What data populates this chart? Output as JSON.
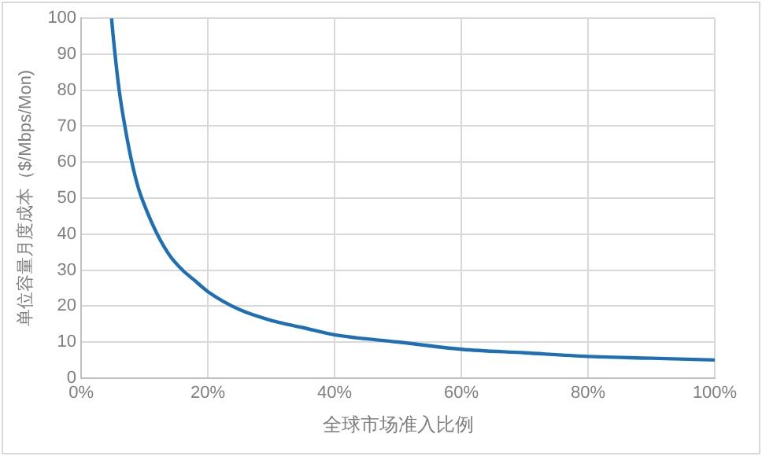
{
  "chart_data": {
    "type": "line",
    "xlabel": "全球市场准入比例",
    "ylabel": "单位容量月度成本（$/Mbps/Mon)",
    "x": [
      4.8,
      5,
      6,
      7,
      8,
      9,
      10,
      12,
      14,
      16,
      18,
      20,
      25,
      30,
      35,
      40,
      50,
      60,
      70,
      80,
      90,
      100
    ],
    "series": [
      {
        "color": "#1f6fb4",
        "values": [
          100,
          96,
          80,
          69,
          60,
          53,
          48,
          40,
          34,
          30,
          27,
          24,
          19,
          16,
          14,
          12,
          10,
          8,
          7,
          6,
          5.5,
          5
        ]
      }
    ],
    "xlim": [
      0,
      100
    ],
    "xticks": [
      {
        "value": 0,
        "label": "0%"
      },
      {
        "value": 20,
        "label": "20%"
      },
      {
        "value": 40,
        "label": "40%"
      },
      {
        "value": 60,
        "label": "60%"
      },
      {
        "value": 80,
        "label": "80%"
      },
      {
        "value": 100,
        "label": "100%"
      }
    ],
    "ylim": [
      0,
      100
    ],
    "yticks": [
      0,
      10,
      20,
      30,
      40,
      50,
      60,
      70,
      80,
      90,
      100
    ],
    "grid": true,
    "legend": false,
    "marker": "none",
    "line_style": "solid"
  }
}
